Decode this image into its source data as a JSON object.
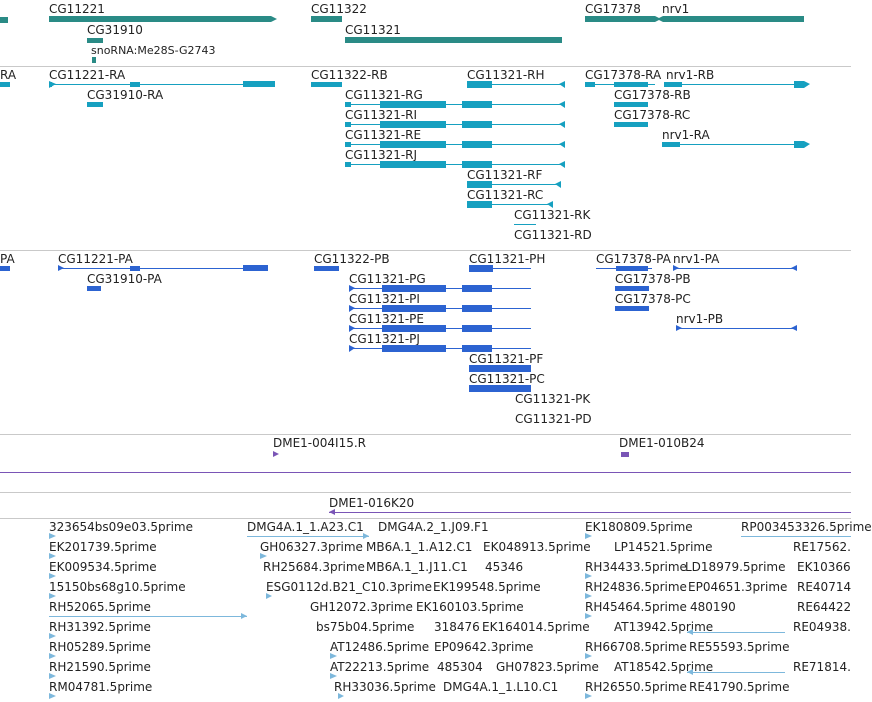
{
  "tracks": {
    "genes": [
      {
        "label": "CG11221"
      },
      {
        "label": "CG31910"
      },
      {
        "label": "snoRNA:Me28S-G2743"
      },
      {
        "label": "CG11322"
      },
      {
        "label": "CG11321"
      },
      {
        "label": "CG17378"
      },
      {
        "label": "nrv1"
      }
    ],
    "transcripts": [
      {
        "label": "RA"
      },
      {
        "label": "CG11221-RA"
      },
      {
        "label": "CG31910-RA"
      },
      {
        "label": "CG11322-RB"
      },
      {
        "label": "CG11321-RG"
      },
      {
        "label": "CG11321-RI"
      },
      {
        "label": "CG11321-RE"
      },
      {
        "label": "CG11321-RJ"
      },
      {
        "label": "CG11321-RH"
      },
      {
        "label": "CG11321-RF"
      },
      {
        "label": "CG11321-RC"
      },
      {
        "label": "CG11321-RK"
      },
      {
        "label": "CG11321-RD"
      },
      {
        "label": "CG17378-RA"
      },
      {
        "label": "nrv1-RB"
      },
      {
        "label": "CG17378-RB"
      },
      {
        "label": "CG17378-RC"
      },
      {
        "label": "nrv1-RA"
      }
    ],
    "proteins": [
      {
        "label": "PA"
      },
      {
        "label": "CG11221-PA"
      },
      {
        "label": "CG31910-PA"
      },
      {
        "label": "CG11322-PB"
      },
      {
        "label": "CG11321-PH"
      },
      {
        "label": "CG11321-PG"
      },
      {
        "label": "CG11321-PI"
      },
      {
        "label": "CG11321-PE"
      },
      {
        "label": "CG11321-PJ"
      },
      {
        "label": "CG11321-PF"
      },
      {
        "label": "CG11321-PC"
      },
      {
        "label": "CG11321-PK"
      },
      {
        "label": "CG11321-PD"
      },
      {
        "label": "CG17378-PA"
      },
      {
        "label": "nrv1-PA"
      },
      {
        "label": "CG17378-PB"
      },
      {
        "label": "CG17378-PC"
      },
      {
        "label": "nrv1-PB"
      }
    ],
    "clones": [
      {
        "label": "DME1-004I15.R"
      },
      {
        "label": "DME1-010B24"
      },
      {
        "label": "DME1-016K20"
      }
    ],
    "ests": [
      {
        "label": "323654bs09e03.5prime"
      },
      {
        "label": "EK201739.5prime"
      },
      {
        "label": "EK009534.5prime"
      },
      {
        "label": "15150bs68g10.5prime"
      },
      {
        "label": "RH52065.5prime"
      },
      {
        "label": "RH31392.5prime"
      },
      {
        "label": "RH05289.5prime"
      },
      {
        "label": "RH21590.5prime"
      },
      {
        "label": "RM04781.5prime"
      },
      {
        "label": "DMG4A.1_1.A23.C1"
      },
      {
        "label": "DMG4A.2_1.J09.F1"
      },
      {
        "label": "GH06327.3prime"
      },
      {
        "label": "MB6A.1_1.A12.C1"
      },
      {
        "label": "EK048913.5prime"
      },
      {
        "label": "RH25684.3prime"
      },
      {
        "label": "MB6A.1_1.J11.C1"
      },
      {
        "label": "45346"
      },
      {
        "label": "ESG0112d.B21_C10.3prime"
      },
      {
        "label": "EK199548.5prime"
      },
      {
        "label": "GH12072.3prime"
      },
      {
        "label": "EK160103.5prime"
      },
      {
        "label": "bs75b04.5prime"
      },
      {
        "label": "318476"
      },
      {
        "label": "EK164014.5prime"
      },
      {
        "label": "AT12486.5prime"
      },
      {
        "label": "EP09642.3prime"
      },
      {
        "label": "AT22213.5prime"
      },
      {
        "label": "485304"
      },
      {
        "label": "GH07823.5prime"
      },
      {
        "label": "RH33036.5prime"
      },
      {
        "label": "DMG4A.1_1.L10.C1"
      },
      {
        "label": "EK180809.5prime"
      },
      {
        "label": "RP003453326.5prime"
      },
      {
        "label": "LP14521.5prime"
      },
      {
        "label": "RE17562."
      },
      {
        "label": "RH34433.5prime"
      },
      {
        "label": "LD18979.5prime"
      },
      {
        "label": "EK10366"
      },
      {
        "label": "RH24836.5prime"
      },
      {
        "label": "EP04651.3prime"
      },
      {
        "label": "RE40714"
      },
      {
        "label": "RH45464.5prime"
      },
      {
        "label": "480190"
      },
      {
        "label": "RE64422"
      },
      {
        "label": "AT13942.5prime"
      },
      {
        "label": "RE04938."
      },
      {
        "label": "RH66708.5prime"
      },
      {
        "label": "RE55593.5prime"
      },
      {
        "label": "AT18542.5prime"
      },
      {
        "label": "RE71814."
      },
      {
        "label": "RH26550.5prime"
      },
      {
        "label": "RE41790.5prime"
      }
    ]
  },
  "colors": {
    "gene": "#2a8b86",
    "transcript": "#16a0c0",
    "protein": "#2c63d1",
    "clone": "#7a55b6",
    "est": "#7db8dc"
  }
}
